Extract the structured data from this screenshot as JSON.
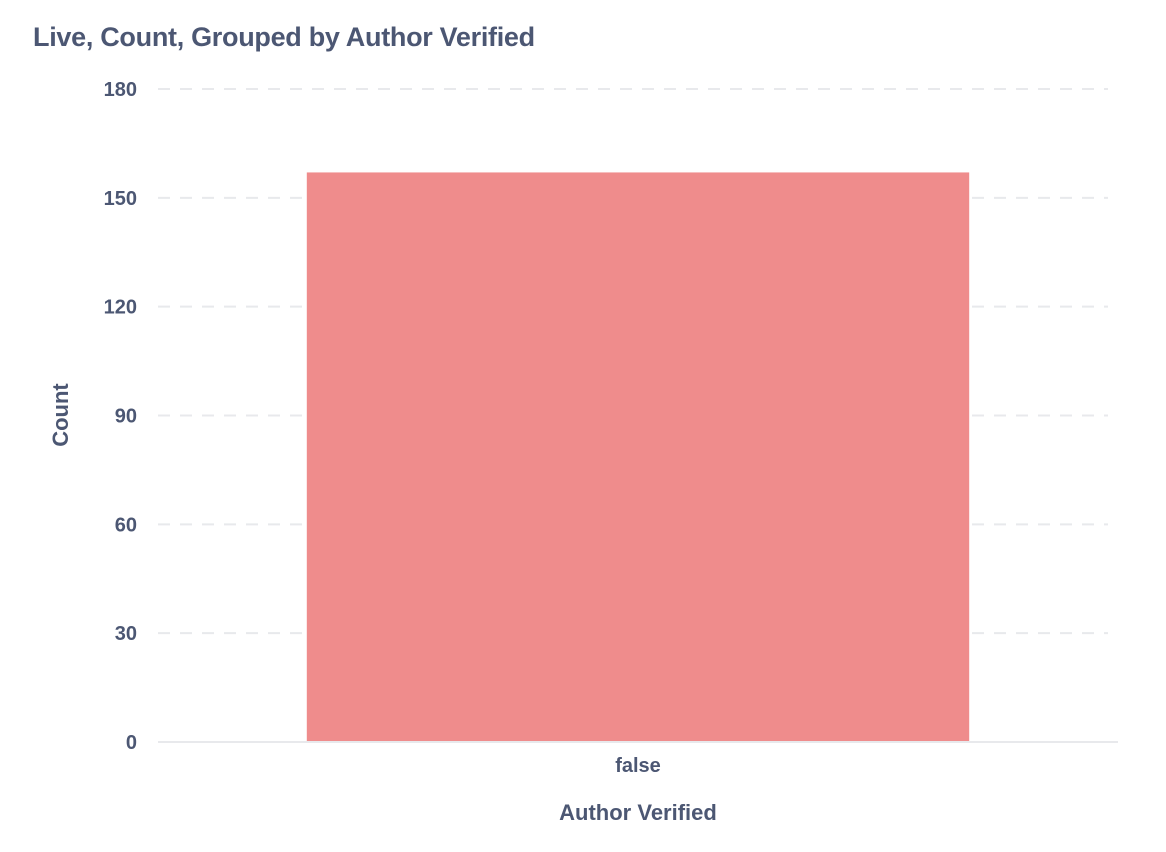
{
  "chart_data": {
    "type": "bar",
    "title": "Live, Count, Grouped by Author Verified",
    "xlabel": "Author Verified",
    "ylabel": "Count",
    "categories": [
      "false"
    ],
    "values": [
      157
    ],
    "ylim": [
      0,
      180
    ],
    "yticks": [
      0,
      30,
      60,
      90,
      120,
      150,
      180
    ],
    "grid": true,
    "bar_color": "#ef8c8c",
    "grid_color": "#e8e9ec",
    "text_color": "#4c5773"
  }
}
